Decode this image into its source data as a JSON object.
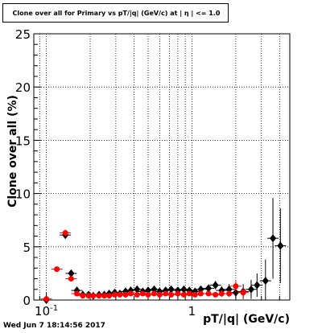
{
  "title": "Clone  over all for Primary vs pT/|q| (GeV/c) at | η | <= 1.0",
  "datestamp": "Wed Jun  7 18:14:56 2017",
  "chart_data": {
    "type": "scatter",
    "title": "Clone  over all for Primary vs pT/|q| (GeV/c) at | η | <= 1.0",
    "xlabel": "pT/|q| (GeV/c)",
    "ylabel": "Clone  over all (%)",
    "xscale": "log",
    "xlim": [
      0.082,
      4.7
    ],
    "ylim": [
      0,
      25
    ],
    "x_tick_labels": [
      "10^-1",
      "1"
    ],
    "y_ticks": [
      0,
      5,
      10,
      15,
      20,
      25
    ],
    "grid": true,
    "colors": {
      "series_1": "#000000",
      "series_2": "#ff0000"
    },
    "series": [
      {
        "marker": "diamond",
        "points": [
          {
            "x": 0.1,
            "y": 0.0,
            "err": 0.1
          },
          {
            "x": 0.135,
            "y": 6.1,
            "err": 0.3
          },
          {
            "x": 0.148,
            "y": 2.5,
            "err": 0.2
          },
          {
            "x": 0.162,
            "y": 0.9,
            "err": 0.1
          },
          {
            "x": 0.178,
            "y": 0.5,
            "err": 0.1
          },
          {
            "x": 0.195,
            "y": 0.5,
            "err": 0.1
          },
          {
            "x": 0.21,
            "y": 0.4,
            "err": 0.1
          },
          {
            "x": 0.23,
            "y": 0.5,
            "err": 0.1
          },
          {
            "x": 0.25,
            "y": 0.5,
            "err": 0.1
          },
          {
            "x": 0.27,
            "y": 0.6,
            "err": 0.1
          },
          {
            "x": 0.295,
            "y": 0.7,
            "err": 0.1
          },
          {
            "x": 0.32,
            "y": 0.6,
            "err": 0.1
          },
          {
            "x": 0.35,
            "y": 0.8,
            "err": 0.1
          },
          {
            "x": 0.38,
            "y": 0.9,
            "err": 0.1
          },
          {
            "x": 0.42,
            "y": 1.0,
            "err": 0.2
          },
          {
            "x": 0.46,
            "y": 0.8,
            "err": 0.2
          },
          {
            "x": 0.5,
            "y": 0.9,
            "err": 0.2
          },
          {
            "x": 0.55,
            "y": 1.0,
            "err": 0.2
          },
          {
            "x": 0.6,
            "y": 0.8,
            "err": 0.2
          },
          {
            "x": 0.66,
            "y": 0.9,
            "err": 0.2
          },
          {
            "x": 0.72,
            "y": 1.0,
            "err": 0.2
          },
          {
            "x": 0.8,
            "y": 0.9,
            "err": 0.2
          },
          {
            "x": 0.88,
            "y": 1.0,
            "err": 0.2
          },
          {
            "x": 0.96,
            "y": 0.9,
            "err": 0.3
          },
          {
            "x": 1.05,
            "y": 0.8,
            "err": 0.3
          },
          {
            "x": 1.15,
            "y": 1.0,
            "err": 0.3
          },
          {
            "x": 1.3,
            "y": 1.1,
            "err": 0.3
          },
          {
            "x": 1.45,
            "y": 1.4,
            "err": 0.4
          },
          {
            "x": 1.6,
            "y": 0.9,
            "err": 0.4
          },
          {
            "x": 1.8,
            "y": 1.0,
            "err": 0.5
          },
          {
            "x": 2.0,
            "y": 0.7,
            "err": 0.5
          },
          {
            "x": 2.25,
            "y": 0.8,
            "err": 0.7
          },
          {
            "x": 2.55,
            "y": 1.0,
            "err": 0.9
          },
          {
            "x": 2.8,
            "y": 1.4,
            "err": 1.1
          },
          {
            "x": 3.2,
            "y": 1.8,
            "err": 2.0
          },
          {
            "x": 3.6,
            "y": 5.8,
            "err": 3.8
          },
          {
            "x": 4.05,
            "y": 5.1,
            "err": 3.5
          }
        ]
      },
      {
        "marker": "circle",
        "points": [
          {
            "x": 0.1,
            "y": 0.1,
            "err": 0.1
          },
          {
            "x": 0.118,
            "y": 2.9,
            "err": 0.2
          },
          {
            "x": 0.135,
            "y": 6.3,
            "err": 0.3
          },
          {
            "x": 0.148,
            "y": 2.0,
            "err": 0.2
          },
          {
            "x": 0.162,
            "y": 0.6,
            "err": 0.1
          },
          {
            "x": 0.178,
            "y": 0.4,
            "err": 0.1
          },
          {
            "x": 0.195,
            "y": 0.4,
            "err": 0.1
          },
          {
            "x": 0.21,
            "y": 0.4,
            "err": 0.1
          },
          {
            "x": 0.23,
            "y": 0.4,
            "err": 0.1
          },
          {
            "x": 0.25,
            "y": 0.4,
            "err": 0.1
          },
          {
            "x": 0.27,
            "y": 0.4,
            "err": 0.1
          },
          {
            "x": 0.295,
            "y": 0.5,
            "err": 0.1
          },
          {
            "x": 0.32,
            "y": 0.5,
            "err": 0.1
          },
          {
            "x": 0.35,
            "y": 0.5,
            "err": 0.1
          },
          {
            "x": 0.38,
            "y": 0.6,
            "err": 0.1
          },
          {
            "x": 0.42,
            "y": 0.5,
            "err": 0.1
          },
          {
            "x": 0.46,
            "y": 0.6,
            "err": 0.1
          },
          {
            "x": 0.5,
            "y": 0.5,
            "err": 0.1
          },
          {
            "x": 0.55,
            "y": 0.6,
            "err": 0.1
          },
          {
            "x": 0.6,
            "y": 0.5,
            "err": 0.1
          },
          {
            "x": 0.66,
            "y": 0.6,
            "err": 0.1
          },
          {
            "x": 0.72,
            "y": 0.5,
            "err": 0.1
          },
          {
            "x": 0.8,
            "y": 0.6,
            "err": 0.2
          },
          {
            "x": 0.88,
            "y": 0.5,
            "err": 0.2
          },
          {
            "x": 0.96,
            "y": 0.6,
            "err": 0.2
          },
          {
            "x": 1.05,
            "y": 0.5,
            "err": 0.2
          },
          {
            "x": 1.15,
            "y": 0.6,
            "err": 0.2
          },
          {
            "x": 1.3,
            "y": 0.6,
            "err": 0.2
          },
          {
            "x": 1.45,
            "y": 0.5,
            "err": 0.2
          },
          {
            "x": 1.6,
            "y": 0.6,
            "err": 0.3
          },
          {
            "x": 1.8,
            "y": 0.6,
            "err": 0.3
          },
          {
            "x": 2.0,
            "y": 1.3,
            "err": 0.5
          },
          {
            "x": 2.25,
            "y": 0.7,
            "err": 0.5
          }
        ]
      }
    ]
  }
}
